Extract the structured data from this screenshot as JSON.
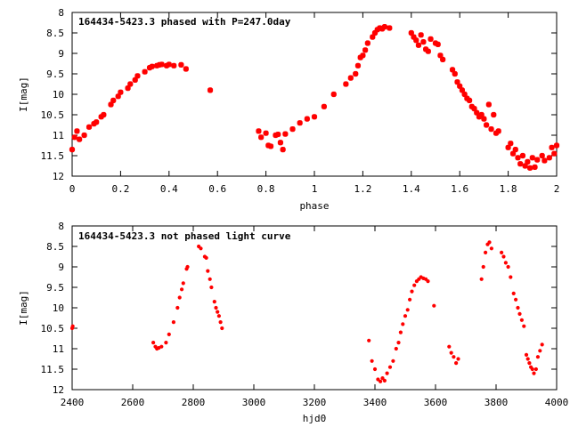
{
  "chart_data": [
    {
      "type": "scatter",
      "title": "164434-5423.3 phased with P=247.0day",
      "xlabel": "phase",
      "ylabel": "I[mag]",
      "xlim": [
        0,
        2
      ],
      "ylim": [
        12,
        8
      ],
      "y_inverted": true,
      "xticks": [
        "0",
        "0.2",
        "0.4",
        "0.6",
        "0.8",
        "1",
        "1.2",
        "1.4",
        "1.6",
        "1.8",
        "2"
      ],
      "yticks": [
        "8",
        "8.5",
        "9",
        "9.5",
        "10",
        "10.5",
        "11",
        "11.5",
        "12"
      ],
      "xtick_values": [
        0,
        0.2,
        0.4,
        0.6,
        0.8,
        1,
        1.2,
        1.4,
        1.6,
        1.8,
        2
      ],
      "ytick_values": [
        8,
        8.5,
        9,
        9.5,
        10,
        10.5,
        11,
        11.5,
        12
      ],
      "marker_color": "#ff0000",
      "x": [
        0.0,
        0.01,
        0.02,
        0.03,
        0.05,
        0.07,
        0.09,
        0.1,
        0.12,
        0.13,
        0.16,
        0.17,
        0.19,
        0.2,
        0.23,
        0.24,
        0.26,
        0.27,
        0.3,
        0.32,
        0.33,
        0.35,
        0.36,
        0.37,
        0.39,
        0.4,
        0.42,
        0.45,
        0.47,
        0.57,
        0.77,
        0.78,
        0.8,
        0.81,
        0.82,
        0.84,
        0.85,
        0.86,
        0.87,
        0.88,
        0.91,
        0.94,
        0.97,
        1.0,
        1.04,
        1.08,
        1.13,
        1.15,
        1.17,
        1.18,
        1.19,
        1.2,
        1.21,
        1.22,
        1.24,
        1.25,
        1.26,
        1.27,
        1.28,
        1.29,
        1.31,
        1.4,
        1.41,
        1.42,
        1.43,
        1.44,
        1.45,
        1.46,
        1.47,
        1.48,
        1.5,
        1.51,
        1.52,
        1.53,
        1.57,
        1.58,
        1.59,
        1.6,
        1.61,
        1.62,
        1.63,
        1.64,
        1.65,
        1.66,
        1.67,
        1.68,
        1.69,
        1.7,
        1.71,
        1.72,
        1.73,
        1.74,
        1.75,
        1.76,
        1.8,
        1.81,
        1.82,
        1.83,
        1.84,
        1.85,
        1.86,
        1.87,
        1.88,
        1.89,
        1.9,
        1.91,
        1.92,
        1.94,
        1.95,
        1.97,
        1.98,
        1.99,
        2.0
      ],
      "y": [
        11.35,
        11.05,
        10.9,
        11.1,
        11.0,
        10.8,
        10.72,
        10.68,
        10.55,
        10.5,
        10.25,
        10.15,
        10.05,
        9.95,
        9.85,
        9.75,
        9.65,
        9.55,
        9.45,
        9.35,
        9.32,
        9.3,
        9.28,
        9.27,
        9.3,
        9.27,
        9.3,
        9.28,
        9.38,
        9.9,
        10.9,
        11.05,
        10.95,
        11.25,
        11.27,
        11.0,
        10.98,
        11.18,
        11.35,
        10.97,
        10.85,
        10.7,
        10.6,
        10.55,
        10.3,
        10.0,
        9.75,
        9.6,
        9.5,
        9.3,
        9.1,
        9.05,
        8.92,
        8.75,
        8.6,
        8.5,
        8.42,
        8.38,
        8.4,
        8.35,
        8.38,
        8.5,
        8.6,
        8.68,
        8.8,
        8.55,
        8.72,
        8.9,
        8.95,
        8.65,
        8.75,
        8.78,
        9.05,
        9.15,
        9.4,
        9.5,
        9.7,
        9.8,
        9.9,
        10.0,
        10.1,
        10.15,
        10.3,
        10.35,
        10.45,
        10.55,
        10.5,
        10.6,
        10.75,
        10.25,
        10.85,
        10.5,
        10.95,
        10.9,
        11.3,
        11.2,
        11.45,
        11.35,
        11.55,
        11.7,
        11.5,
        11.75,
        11.65,
        11.8,
        11.55,
        11.78,
        11.6,
        11.5,
        11.62,
        11.55,
        11.3,
        11.45,
        11.25
      ],
      "x_display": [
        "0",
        "0.01",
        "0.02",
        "0.03",
        "0.05",
        "0.07",
        "0.09",
        "0.1",
        "0.12",
        "0.13",
        "0.16",
        "0.17",
        "0.19",
        "0.2",
        "0.23",
        "0.24",
        "0.26",
        "0.27",
        "0.3",
        "0.32",
        "0.33",
        "0.35",
        "0.36",
        "0.37",
        "0.39",
        "0.4",
        "0.42",
        "0.45",
        "0.47",
        "0.57",
        "0.77",
        "0.78",
        "0.8",
        "0.81",
        "0.82",
        "0.84",
        "0.85",
        "0.86",
        "0.87",
        "0.88",
        "0.91",
        "0.94",
        "0.97",
        "1",
        "1.04",
        "1.08",
        "1.13",
        "1.15",
        "1.17",
        "1.18",
        "1.19",
        "1.2",
        "1.21",
        "1.22",
        "1.24",
        "1.25",
        "1.26",
        "1.27",
        "1.28",
        "1.29",
        "1.31",
        "1.4",
        "1.41",
        "1.42",
        "1.43",
        "1.44",
        "1.45",
        "1.46",
        "1.47",
        "1.48",
        "1.5",
        "1.51",
        "1.52",
        "1.53",
        "1.57",
        "1.58",
        "1.59",
        "1.6",
        "1.61",
        "1.62",
        "1.63",
        "1.64",
        "1.65",
        "1.66",
        "1.67",
        "1.68",
        "1.69",
        "1.7",
        "1.71",
        "1.72",
        "1.73",
        "1.74",
        "1.75",
        "1.76",
        "1.8",
        "1.81",
        "1.82",
        "1.83",
        "1.84",
        "1.85",
        "1.86",
        "1.87",
        "1.88",
        "1.89",
        "1.9",
        "1.91",
        "1.92",
        "1.94",
        "1.95",
        "1.97",
        "1.98",
        "1.99",
        "2"
      ],
      "grid": false,
      "legend": "none"
    },
    {
      "type": "scatter",
      "title": "164434-5423.3 not phased light curve",
      "xlabel": "hjd0",
      "ylabel": "I[mag]",
      "xlim": [
        2400,
        4000
      ],
      "ylim": [
        12,
        8
      ],
      "y_inverted": true,
      "xticks": [
        "2400",
        "2600",
        "2800",
        "3000",
        "3200",
        "3400",
        "3600",
        "3800",
        "4000"
      ],
      "yticks": [
        "8",
        "8.5",
        "9",
        "9.5",
        "10",
        "10.5",
        "11",
        "11.5",
        "12"
      ],
      "xtick_values": [
        2400,
        2600,
        2800,
        3000,
        3200,
        3400,
        3600,
        3800,
        4000
      ],
      "ytick_values": [
        8,
        8.5,
        9,
        9.5,
        10,
        10.5,
        11,
        11.5,
        12
      ],
      "marker_color": "#ff0000",
      "x": [
        2400,
        2402,
        2668,
        2675,
        2680,
        2686,
        2695,
        2710,
        2720,
        2735,
        2748,
        2755,
        2762,
        2767,
        2778,
        2781,
        2818,
        2825,
        2838,
        2843,
        2848,
        2855,
        2860,
        2870,
        2875,
        2880,
        2885,
        2890,
        2895,
        3380,
        3390,
        3400,
        3410,
        3418,
        3425,
        3432,
        3440,
        3450,
        3460,
        3470,
        3478,
        3485,
        3492,
        3500,
        3508,
        3515,
        3522,
        3530,
        3538,
        3545,
        3552,
        3560,
        3568,
        3575,
        3595,
        3645,
        3652,
        3660,
        3668,
        3675,
        3752,
        3758,
        3765,
        3772,
        3778,
        3785,
        3818,
        3825,
        3832,
        3840,
        3848,
        3858,
        3865,
        3872,
        3878,
        3885,
        3892,
        3900,
        3905,
        3910,
        3915,
        3920,
        3925,
        3932,
        3938,
        3945,
        3952
      ],
      "y": [
        10.5,
        10.45,
        10.85,
        10.95,
        11.0,
        10.98,
        10.95,
        10.85,
        10.65,
        10.35,
        10.0,
        9.75,
        9.55,
        9.4,
        9.05,
        9.0,
        8.5,
        8.55,
        8.75,
        8.78,
        9.1,
        9.3,
        9.5,
        9.85,
        10.0,
        10.1,
        10.2,
        10.35,
        10.5,
        10.8,
        11.3,
        11.5,
        11.75,
        11.8,
        11.72,
        11.78,
        11.6,
        11.45,
        11.3,
        11.0,
        10.85,
        10.6,
        10.4,
        10.2,
        10.05,
        9.8,
        9.6,
        9.45,
        9.35,
        9.3,
        9.25,
        9.28,
        9.3,
        9.35,
        9.95,
        10.95,
        11.1,
        11.2,
        11.35,
        11.25,
        9.3,
        9.0,
        8.65,
        8.45,
        8.4,
        8.55,
        8.65,
        8.75,
        8.9,
        9.0,
        9.25,
        9.65,
        9.8,
        10.0,
        10.15,
        10.3,
        10.45,
        11.15,
        11.25,
        11.35,
        11.45,
        11.5,
        11.6,
        11.5,
        11.2,
        11.05,
        10.9
      ],
      "grid": false,
      "legend": "none"
    }
  ]
}
